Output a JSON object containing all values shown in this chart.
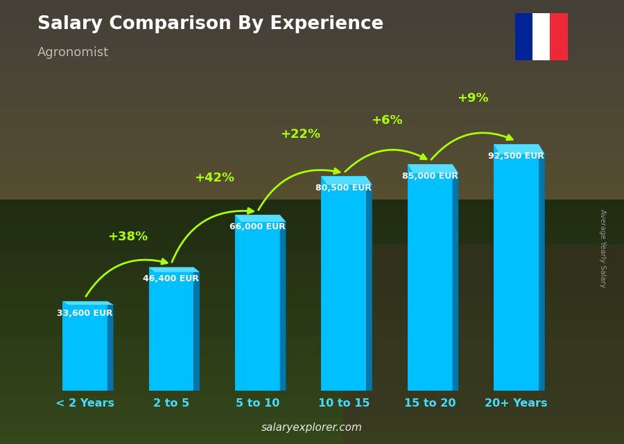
{
  "title": "Salary Comparison By Experience",
  "subtitle": "Agronomist",
  "categories": [
    "< 2 Years",
    "2 to 5",
    "5 to 10",
    "10 to 15",
    "15 to 20",
    "20+ Years"
  ],
  "values": [
    33600,
    46400,
    66000,
    80500,
    85000,
    92500
  ],
  "value_labels": [
    "33,600 EUR",
    "46,400 EUR",
    "66,000 EUR",
    "80,500 EUR",
    "85,000 EUR",
    "92,500 EUR"
  ],
  "pct_labels": [
    "+38%",
    "+42%",
    "+22%",
    "+6%",
    "+9%"
  ],
  "bar_color_main": "#00BFFF",
  "bar_color_dark": "#0077AA",
  "bar_color_top": "#55DDFF",
  "title_color": "#FFFFFF",
  "subtitle_color": "#CCCCCC",
  "pct_color": "#AAFF00",
  "category_color": "#44DDFF",
  "watermark": "salaryexplorer.com",
  "ylabel": "Average Yearly Salary",
  "ylim": [
    0,
    105000
  ],
  "flag_colors": [
    "#002395",
    "#FFFFFF",
    "#ED2939"
  ],
  "sky_top": "#5a5a6a",
  "sky_bottom": "#7a7060",
  "ground_top": "#4a6030",
  "ground_bottom": "#3a4a20"
}
